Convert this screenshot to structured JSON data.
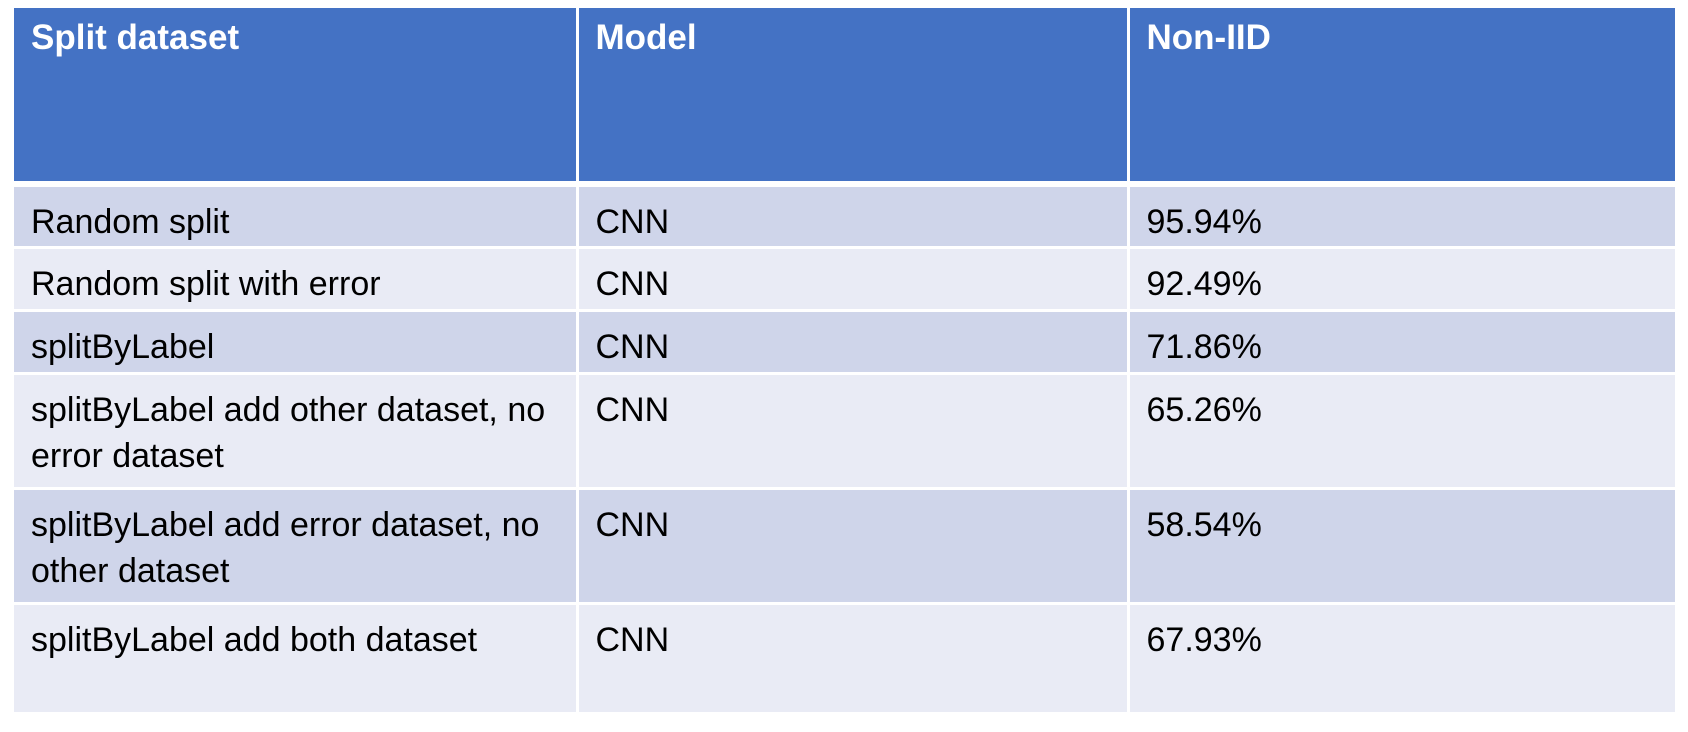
{
  "table": {
    "headers": [
      "Split dataset",
      "Model",
      "Non-IID"
    ],
    "rows": [
      [
        "Random split",
        "CNN",
        "95.94%"
      ],
      [
        "Random split with error",
        "CNN",
        "92.49%"
      ],
      [
        "splitByLabel",
        "CNN",
        "71.86%"
      ],
      [
        "splitByLabel add other dataset, no error dataset",
        "CNN",
        "65.26%"
      ],
      [
        "splitByLabel add error dataset, no other dataset",
        "CNN",
        "58.54%"
      ],
      [
        "splitByLabel add both dataset",
        "CNN",
        "67.93%"
      ]
    ]
  },
  "colors": {
    "header_bg": "#4472c4",
    "row_dark": "#cfd5ea",
    "row_light": "#e9ebf5",
    "header_text": "#ffffff"
  }
}
